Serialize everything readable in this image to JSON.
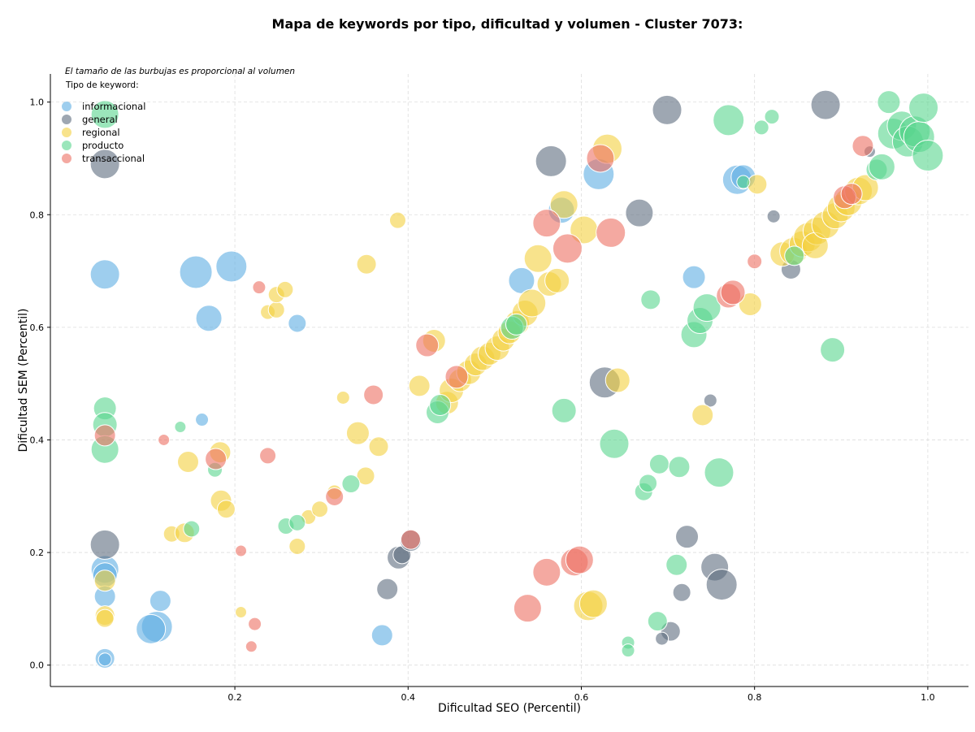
{
  "chart_data": {
    "type": "scatter",
    "title": "Mapa de keywords por tipo, dificultad y volumen - Cluster 7073:",
    "xlabel": "Dificultad SEO (Percentil)",
    "ylabel": "Dificultad SEM (Percentil)",
    "xlim": [
      -0.013,
      1.047
    ],
    "ylim": [
      -0.038,
      1.05
    ],
    "xticks": [
      0.2,
      0.4,
      0.6,
      0.8,
      1.0
    ],
    "yticks": [
      0.0,
      0.2,
      0.4,
      0.6,
      0.8,
      1.0
    ],
    "xtick_labels": [
      "0.2",
      "0.4",
      "0.6",
      "0.8",
      "1.0"
    ],
    "ytick_labels": [
      "0.0",
      "0.2",
      "0.4",
      "0.6",
      "0.8",
      "1.0"
    ],
    "grid": true,
    "note": "El tamaño de las burbujas es proporcional al volumen",
    "legend_title": "Tipo de keyword:",
    "legend_position": "top-left",
    "series": [
      {
        "name": "informacional",
        "color": "#5dade2",
        "points": [
          {
            "x": 0.05,
            "y": 0.694,
            "r": 18
          },
          {
            "x": 0.155,
            "y": 0.698,
            "r": 20
          },
          {
            "x": 0.196,
            "y": 0.708,
            "r": 19
          },
          {
            "x": 0.17,
            "y": 0.616,
            "r": 16
          },
          {
            "x": 0.272,
            "y": 0.607,
            "r": 11
          },
          {
            "x": 0.162,
            "y": 0.436,
            "r": 8
          },
          {
            "x": 0.05,
            "y": 0.17,
            "r": 17
          },
          {
            "x": 0.05,
            "y": 0.16,
            "r": 15
          },
          {
            "x": 0.05,
            "y": 0.122,
            "r": 13
          },
          {
            "x": 0.114,
            "y": 0.114,
            "r": 13
          },
          {
            "x": 0.11,
            "y": 0.068,
            "r": 19
          },
          {
            "x": 0.103,
            "y": 0.064,
            "r": 18
          },
          {
            "x": 0.05,
            "y": 0.012,
            "r": 12
          },
          {
            "x": 0.05,
            "y": 0.01,
            "r": 8
          },
          {
            "x": 0.37,
            "y": 0.053,
            "r": 13
          },
          {
            "x": 0.531,
            "y": 0.683,
            "r": 16
          },
          {
            "x": 0.577,
            "y": 0.808,
            "r": 16
          },
          {
            "x": 0.62,
            "y": 0.872,
            "r": 19
          },
          {
            "x": 0.73,
            "y": 0.689,
            "r": 14
          },
          {
            "x": 0.78,
            "y": 0.862,
            "r": 18
          },
          {
            "x": 0.787,
            "y": 0.867,
            "r": 15
          }
        ]
      },
      {
        "name": "general",
        "color": "#5d6d7e",
        "points": [
          {
            "x": 0.05,
            "y": 0.89,
            "r": 18
          },
          {
            "x": 0.05,
            "y": 0.214,
            "r": 18
          },
          {
            "x": 0.389,
            "y": 0.191,
            "r": 14
          },
          {
            "x": 0.393,
            "y": 0.196,
            "r": 11
          },
          {
            "x": 0.403,
            "y": 0.221,
            "r": 13
          },
          {
            "x": 0.376,
            "y": 0.135,
            "r": 13
          },
          {
            "x": 0.565,
            "y": 0.895,
            "r": 19
          },
          {
            "x": 0.627,
            "y": 0.502,
            "r": 19
          },
          {
            "x": 0.667,
            "y": 0.803,
            "r": 17
          },
          {
            "x": 0.699,
            "y": 0.986,
            "r": 18
          },
          {
            "x": 0.722,
            "y": 0.228,
            "r": 14
          },
          {
            "x": 0.716,
            "y": 0.129,
            "r": 11
          },
          {
            "x": 0.754,
            "y": 0.174,
            "r": 17
          },
          {
            "x": 0.762,
            "y": 0.143,
            "r": 19
          },
          {
            "x": 0.749,
            "y": 0.47,
            "r": 8
          },
          {
            "x": 0.703,
            "y": 0.06,
            "r": 12
          },
          {
            "x": 0.693,
            "y": 0.047,
            "r": 8
          },
          {
            "x": 0.882,
            "y": 0.995,
            "r": 18
          },
          {
            "x": 0.822,
            "y": 0.797,
            "r": 8
          },
          {
            "x": 0.842,
            "y": 0.703,
            "r": 12
          },
          {
            "x": 0.933,
            "y": 0.912,
            "r": 7
          }
        ]
      },
      {
        "name": "regional",
        "color": "#f4d03f",
        "points": [
          {
            "x": 0.05,
            "y": 0.088,
            "r": 12
          },
          {
            "x": 0.05,
            "y": 0.083,
            "r": 11
          },
          {
            "x": 0.05,
            "y": 0.15,
            "r": 13
          },
          {
            "x": 0.127,
            "y": 0.233,
            "r": 10
          },
          {
            "x": 0.142,
            "y": 0.235,
            "r": 12
          },
          {
            "x": 0.146,
            "y": 0.361,
            "r": 13
          },
          {
            "x": 0.183,
            "y": 0.378,
            "r": 13
          },
          {
            "x": 0.184,
            "y": 0.292,
            "r": 13
          },
          {
            "x": 0.19,
            "y": 0.277,
            "r": 11
          },
          {
            "x": 0.207,
            "y": 0.094,
            "r": 7
          },
          {
            "x": 0.238,
            "y": 0.627,
            "r": 9
          },
          {
            "x": 0.248,
            "y": 0.631,
            "r": 10
          },
          {
            "x": 0.248,
            "y": 0.658,
            "r": 10
          },
          {
            "x": 0.258,
            "y": 0.667,
            "r": 10
          },
          {
            "x": 0.272,
            "y": 0.211,
            "r": 10
          },
          {
            "x": 0.285,
            "y": 0.263,
            "r": 9
          },
          {
            "x": 0.298,
            "y": 0.277,
            "r": 10
          },
          {
            "x": 0.315,
            "y": 0.307,
            "r": 9
          },
          {
            "x": 0.325,
            "y": 0.475,
            "r": 8
          },
          {
            "x": 0.342,
            "y": 0.412,
            "r": 14
          },
          {
            "x": 0.351,
            "y": 0.336,
            "r": 11
          },
          {
            "x": 0.352,
            "y": 0.712,
            "r": 12
          },
          {
            "x": 0.366,
            "y": 0.388,
            "r": 12
          },
          {
            "x": 0.388,
            "y": 0.79,
            "r": 10
          },
          {
            "x": 0.413,
            "y": 0.496,
            "r": 13
          },
          {
            "x": 0.43,
            "y": 0.576,
            "r": 14
          },
          {
            "x": 0.445,
            "y": 0.466,
            "r": 14
          },
          {
            "x": 0.45,
            "y": 0.488,
            "r": 15
          },
          {
            "x": 0.46,
            "y": 0.506,
            "r": 14
          },
          {
            "x": 0.47,
            "y": 0.52,
            "r": 15
          },
          {
            "x": 0.478,
            "y": 0.534,
            "r": 14
          },
          {
            "x": 0.486,
            "y": 0.545,
            "r": 15
          },
          {
            "x": 0.494,
            "y": 0.553,
            "r": 14
          },
          {
            "x": 0.503,
            "y": 0.563,
            "r": 15
          },
          {
            "x": 0.51,
            "y": 0.578,
            "r": 14
          },
          {
            "x": 0.517,
            "y": 0.591,
            "r": 14
          },
          {
            "x": 0.526,
            "y": 0.608,
            "r": 15
          },
          {
            "x": 0.535,
            "y": 0.625,
            "r": 16
          },
          {
            "x": 0.543,
            "y": 0.643,
            "r": 17
          },
          {
            "x": 0.55,
            "y": 0.722,
            "r": 17
          },
          {
            "x": 0.563,
            "y": 0.677,
            "r": 15
          },
          {
            "x": 0.572,
            "y": 0.683,
            "r": 15
          },
          {
            "x": 0.58,
            "y": 0.818,
            "r": 17
          },
          {
            "x": 0.603,
            "y": 0.773,
            "r": 17
          },
          {
            "x": 0.608,
            "y": 0.105,
            "r": 18
          },
          {
            "x": 0.614,
            "y": 0.109,
            "r": 17
          },
          {
            "x": 0.63,
            "y": 0.917,
            "r": 18
          },
          {
            "x": 0.642,
            "y": 0.506,
            "r": 15
          },
          {
            "x": 0.74,
            "y": 0.444,
            "r": 13
          },
          {
            "x": 0.795,
            "y": 0.641,
            "r": 14
          },
          {
            "x": 0.803,
            "y": 0.854,
            "r": 12
          },
          {
            "x": 0.832,
            "y": 0.73,
            "r": 15
          },
          {
            "x": 0.845,
            "y": 0.735,
            "r": 17
          },
          {
            "x": 0.855,
            "y": 0.748,
            "r": 16
          },
          {
            "x": 0.862,
            "y": 0.76,
            "r": 18
          },
          {
            "x": 0.872,
            "y": 0.771,
            "r": 17
          },
          {
            "x": 0.87,
            "y": 0.745,
            "r": 16
          },
          {
            "x": 0.882,
            "y": 0.782,
            "r": 17
          },
          {
            "x": 0.893,
            "y": 0.798,
            "r": 16
          },
          {
            "x": 0.9,
            "y": 0.812,
            "r": 17
          },
          {
            "x": 0.908,
            "y": 0.823,
            "r": 17
          },
          {
            "x": 0.92,
            "y": 0.842,
            "r": 17
          },
          {
            "x": 0.928,
            "y": 0.848,
            "r": 16
          }
        ]
      },
      {
        "name": "producto",
        "color": "#58d68d",
        "points": [
          {
            "x": 0.05,
            "y": 0.978,
            "r": 17
          },
          {
            "x": 0.05,
            "y": 0.456,
            "r": 14
          },
          {
            "x": 0.05,
            "y": 0.427,
            "r": 15
          },
          {
            "x": 0.05,
            "y": 0.383,
            "r": 17
          },
          {
            "x": 0.137,
            "y": 0.423,
            "r": 7
          },
          {
            "x": 0.15,
            "y": 0.242,
            "r": 10
          },
          {
            "x": 0.177,
            "y": 0.347,
            "r": 9
          },
          {
            "x": 0.259,
            "y": 0.247,
            "r": 10
          },
          {
            "x": 0.272,
            "y": 0.253,
            "r": 10
          },
          {
            "x": 0.334,
            "y": 0.322,
            "r": 11
          },
          {
            "x": 0.434,
            "y": 0.449,
            "r": 14
          },
          {
            "x": 0.437,
            "y": 0.462,
            "r": 13
          },
          {
            "x": 0.52,
            "y": 0.599,
            "r": 14
          },
          {
            "x": 0.525,
            "y": 0.605,
            "r": 13
          },
          {
            "x": 0.58,
            "y": 0.452,
            "r": 15
          },
          {
            "x": 0.638,
            "y": 0.393,
            "r": 18
          },
          {
            "x": 0.654,
            "y": 0.04,
            "r": 8
          },
          {
            "x": 0.654,
            "y": 0.026,
            "r": 8
          },
          {
            "x": 0.672,
            "y": 0.308,
            "r": 11
          },
          {
            "x": 0.677,
            "y": 0.323,
            "r": 11
          },
          {
            "x": 0.68,
            "y": 0.649,
            "r": 12
          },
          {
            "x": 0.688,
            "y": 0.078,
            "r": 12
          },
          {
            "x": 0.69,
            "y": 0.357,
            "r": 12
          },
          {
            "x": 0.71,
            "y": 0.178,
            "r": 13
          },
          {
            "x": 0.713,
            "y": 0.352,
            "r": 13
          },
          {
            "x": 0.73,
            "y": 0.587,
            "r": 16
          },
          {
            "x": 0.737,
            "y": 0.612,
            "r": 16
          },
          {
            "x": 0.745,
            "y": 0.635,
            "r": 17
          },
          {
            "x": 0.759,
            "y": 0.342,
            "r": 18
          },
          {
            "x": 0.77,
            "y": 0.968,
            "r": 19
          },
          {
            "x": 0.787,
            "y": 0.858,
            "r": 8
          },
          {
            "x": 0.808,
            "y": 0.955,
            "r": 9
          },
          {
            "x": 0.82,
            "y": 0.974,
            "r": 9
          },
          {
            "x": 0.846,
            "y": 0.727,
            "r": 12
          },
          {
            "x": 0.89,
            "y": 0.56,
            "r": 15
          },
          {
            "x": 0.941,
            "y": 0.88,
            "r": 13
          },
          {
            "x": 0.947,
            "y": 0.885,
            "r": 16
          },
          {
            "x": 0.955,
            "y": 1.0,
            "r": 14
          },
          {
            "x": 0.96,
            "y": 0.944,
            "r": 19
          },
          {
            "x": 0.97,
            "y": 0.958,
            "r": 18
          },
          {
            "x": 0.977,
            "y": 0.93,
            "r": 19
          },
          {
            "x": 0.985,
            "y": 0.948,
            "r": 19
          },
          {
            "x": 0.99,
            "y": 0.938,
            "r": 19
          },
          {
            "x": 0.995,
            "y": 0.99,
            "r": 18
          },
          {
            "x": 1.0,
            "y": 0.905,
            "r": 19
          }
        ]
      },
      {
        "name": "transaccional",
        "color": "#ec7063",
        "points": [
          {
            "x": 0.05,
            "y": 0.408,
            "r": 13
          },
          {
            "x": 0.118,
            "y": 0.4,
            "r": 7
          },
          {
            "x": 0.178,
            "y": 0.366,
            "r": 13
          },
          {
            "x": 0.207,
            "y": 0.203,
            "r": 7
          },
          {
            "x": 0.219,
            "y": 0.033,
            "r": 7
          },
          {
            "x": 0.223,
            "y": 0.073,
            "r": 8
          },
          {
            "x": 0.228,
            "y": 0.671,
            "r": 8
          },
          {
            "x": 0.238,
            "y": 0.372,
            "r": 10
          },
          {
            "x": 0.315,
            "y": 0.299,
            "r": 11
          },
          {
            "x": 0.36,
            "y": 0.48,
            "r": 12
          },
          {
            "x": 0.403,
            "y": 0.223,
            "r": 12
          },
          {
            "x": 0.422,
            "y": 0.568,
            "r": 14
          },
          {
            "x": 0.456,
            "y": 0.512,
            "r": 14
          },
          {
            "x": 0.538,
            "y": 0.101,
            "r": 17
          },
          {
            "x": 0.56,
            "y": 0.165,
            "r": 17
          },
          {
            "x": 0.56,
            "y": 0.785,
            "r": 17
          },
          {
            "x": 0.584,
            "y": 0.74,
            "r": 18
          },
          {
            "x": 0.592,
            "y": 0.183,
            "r": 17
          },
          {
            "x": 0.598,
            "y": 0.187,
            "r": 17
          },
          {
            "x": 0.622,
            "y": 0.9,
            "r": 17
          },
          {
            "x": 0.634,
            "y": 0.768,
            "r": 18
          },
          {
            "x": 0.77,
            "y": 0.656,
            "r": 15
          },
          {
            "x": 0.775,
            "y": 0.662,
            "r": 15
          },
          {
            "x": 0.8,
            "y": 0.717,
            "r": 9
          },
          {
            "x": 0.925,
            "y": 0.922,
            "r": 13
          },
          {
            "x": 0.904,
            "y": 0.831,
            "r": 14
          },
          {
            "x": 0.912,
            "y": 0.837,
            "r": 13
          }
        ]
      }
    ]
  }
}
